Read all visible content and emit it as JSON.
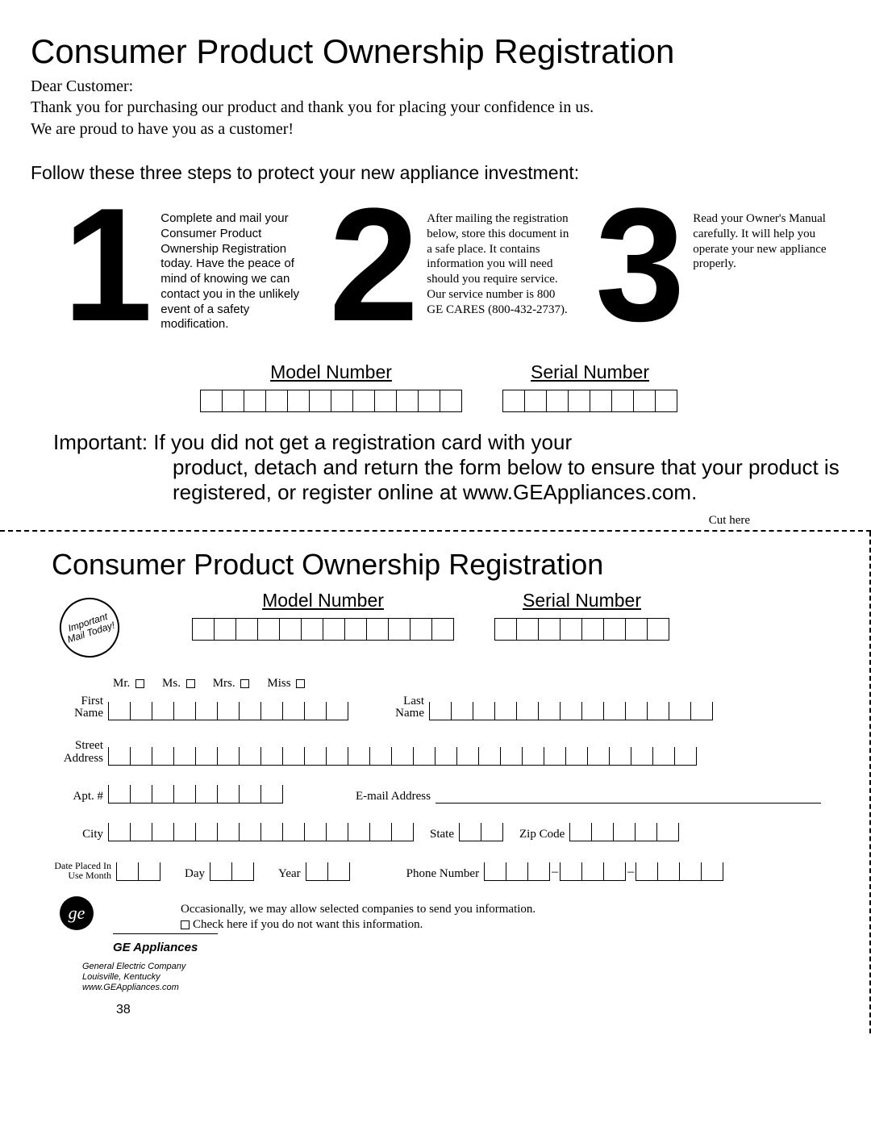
{
  "title": "Consumer Product Ownership Registration",
  "greeting": "Dear Customer:",
  "intro1": "Thank you for purchasing our product and thank you for placing your confidence in us.",
  "intro2": "We are proud to have you as a customer!",
  "steps_lead": "Follow these three steps to protect your new appliance investment:",
  "steps": [
    {
      "num": "1",
      "text": "Complete and mail your Consumer Product Ownership Registration today. Have the peace of mind of knowing we can contact you in the unlikely event of a safety modification."
    },
    {
      "num": "2",
      "text": "After mailing the registration below, store this document in a safe place. It contains information you will need should you require service. Our service number is 800 GE CARES (800-432-2737)."
    },
    {
      "num": "3",
      "text": "Read your Owner's Manual carefully. It will help you operate your new appliance properly."
    }
  ],
  "model_label": "Model Number",
  "serial_label": "Serial Number",
  "important": "Important: If you did not get a registration card with your",
  "important2": "product, detach and return the form below to ensure that your product is registered, or register online at www.GEAppliances.com.",
  "cut_here": "Cut here",
  "sub_title": "Consumer Product Ownership Registration",
  "stamp": "Important Mail Today!",
  "titles": [
    "Mr.",
    "Ms.",
    "Mrs.",
    "Miss"
  ],
  "labels": {
    "first_name": "First Name",
    "last_name": "Last Name",
    "street": "Street Address",
    "apt": "Apt. #",
    "email": "E-mail Address",
    "city": "City",
    "state": "State",
    "zip": "Zip Code",
    "date": "Date Placed In Use Month",
    "day": "Day",
    "year": "Year",
    "phone": "Phone Number"
  },
  "occasional1": "Occasionally, we may allow selected companies to send you information.",
  "occasional2": "Check here if you do not want this information.",
  "brand": "GE Appliances",
  "company": {
    "line1": "General Electric Company",
    "line2": "Louisville, Kentucky",
    "line3": "www.GEAppliances.com"
  },
  "page_num": "38",
  "box_counts": {
    "model": 12,
    "serial": 8,
    "first_name": 11,
    "last_name": 13,
    "street": 27,
    "apt": 8,
    "city": 14,
    "state": 2,
    "zip": 5,
    "month": 2,
    "day": 2,
    "year": 2,
    "phone_a": 3,
    "phone_b": 3,
    "phone_c": 4
  }
}
